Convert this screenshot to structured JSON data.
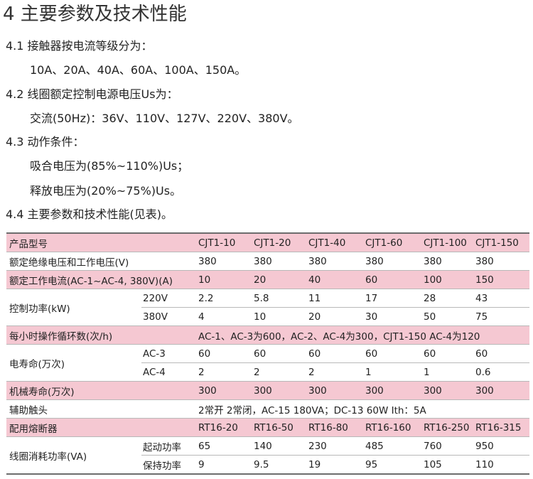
{
  "title": "4 主要参数及技术性能",
  "sections": [
    {
      "heading": "4.1 接触器按电流等级分为：",
      "lines": [
        "10A、20A、40A、60A、100A、150A。"
      ]
    },
    {
      "heading": "4.2 线圈额定控制电源电压Us为：",
      "lines": [
        "交流(50Hz)：36V、110V、127V、220V、380V。"
      ]
    },
    {
      "heading": "4.3 动作条件：",
      "lines": [
        "吸合电压为(85%~110%)Us；",
        "释放电压为(20%~75%)Us。"
      ]
    },
    {
      "heading": "4.4 主要参数和技术性能(见表)。",
      "lines": []
    }
  ],
  "table": {
    "header": {
      "label": "产品型号",
      "models": [
        "CJT1-10",
        "CJT1-20",
        "CJT1-40",
        "CJT1-60",
        "CJT1-100",
        "CJT1-150"
      ]
    },
    "insulation_voltage": {
      "label": "额定绝缘电压和工作电压(V)",
      "values": [
        "380",
        "380",
        "380",
        "380",
        "380",
        "380"
      ]
    },
    "rated_current": {
      "label": "额定工作电流(AC-1~AC-4, 380V)(A)",
      "values": [
        "10",
        "20",
        "40",
        "60",
        "100",
        "150"
      ]
    },
    "control_power": {
      "label": "控制功率(kW)",
      "rows": [
        {
          "sub": "220V",
          "values": [
            "2.2",
            "5.8",
            "11",
            "17",
            "28",
            "43"
          ]
        },
        {
          "sub": "380V",
          "values": [
            "4",
            "10",
            "20",
            "30",
            "50",
            "75"
          ]
        }
      ]
    },
    "operating_cycles": {
      "label": "每小时操作循环数(次/h)",
      "value": "AC-1、AC-3为600，AC-2、AC-4为300，CJT1-150  AC-4为120"
    },
    "electrical_life": {
      "label": "电寿命(万次)",
      "rows": [
        {
          "sub": "AC-3",
          "values": [
            "60",
            "60",
            "60",
            "60",
            "60",
            "60"
          ]
        },
        {
          "sub": "AC-4",
          "values": [
            "2",
            "2",
            "2",
            "1",
            "1",
            "0.6"
          ]
        }
      ]
    },
    "mechanical_life": {
      "label": "机械寿命(万次)",
      "values": [
        "300",
        "300",
        "300",
        "300",
        "300",
        "300"
      ]
    },
    "auxiliary_contacts": {
      "label": "辅助触头",
      "value": "2常开  2常闭，AC-15  180VA；DC-13  60W  Ith：5A"
    },
    "fuse": {
      "label": "配用熔断器",
      "values": [
        "RT16-20",
        "RT16-50",
        "RT16-80",
        "RT16-160",
        "RT16-250",
        "RT16-315"
      ]
    },
    "coil_power": {
      "label": "线圈消耗功率(VA)",
      "rows": [
        {
          "sub": "起动功率",
          "values": [
            "65",
            "140",
            "230",
            "485",
            "760",
            "950"
          ]
        },
        {
          "sub": "保持功率",
          "values": [
            "9",
            "9.5",
            "19",
            "95",
            "105",
            "110"
          ]
        }
      ]
    }
  },
  "colors": {
    "header_row_bg": "#f5c8d2",
    "rule": "#6d6d6d"
  }
}
